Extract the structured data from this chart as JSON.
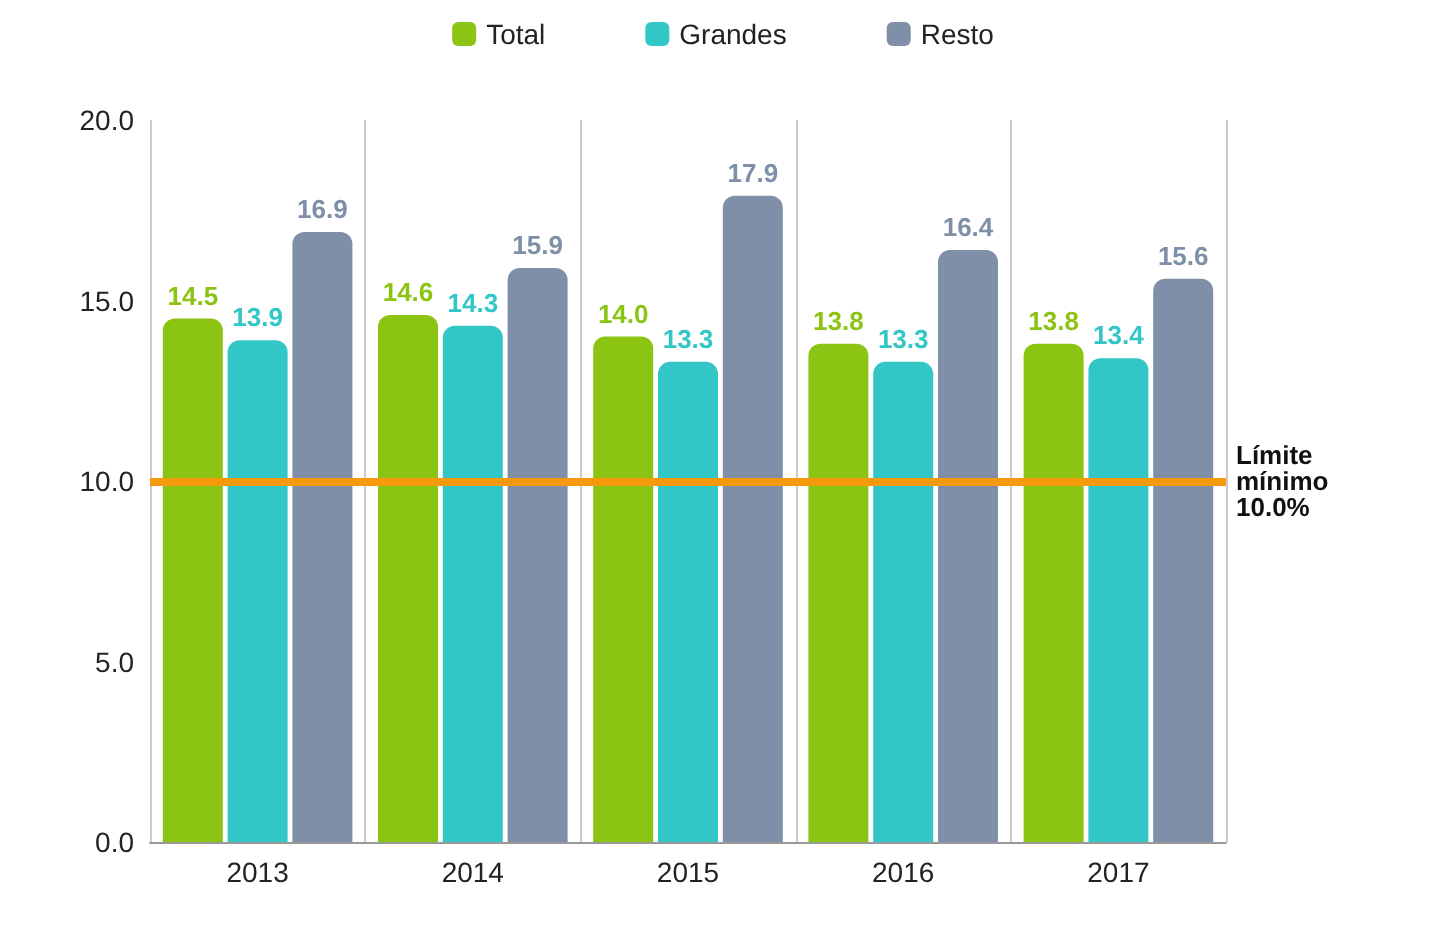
{
  "chart_data": {
    "type": "bar",
    "categories": [
      "2013",
      "2014",
      "2015",
      "2016",
      "2017"
    ],
    "series": [
      {
        "name": "Total",
        "color": "#8cc414",
        "values": [
          14.5,
          14.6,
          14.0,
          13.8,
          13.8
        ],
        "value_labels": [
          "14.5",
          "14.6",
          "14.0",
          "13.8",
          "13.8"
        ]
      },
      {
        "name": "Grandes",
        "color": "#33c6c6",
        "values": [
          13.9,
          14.3,
          13.3,
          13.3,
          13.4
        ],
        "value_labels": [
          "13.9",
          "14.3",
          "13.3",
          "13.3",
          "13.4"
        ]
      },
      {
        "name": "Resto",
        "color": "#7f8fa8",
        "values": [
          16.9,
          15.9,
          17.9,
          16.4,
          15.6
        ],
        "value_labels": [
          "16.9",
          "15.9",
          "17.9",
          "16.4",
          "15.6"
        ]
      }
    ],
    "ylim": [
      0,
      20
    ],
    "yticks": [
      {
        "value": 0,
        "label": "0.0"
      },
      {
        "value": 5,
        "label": "5.0"
      },
      {
        "value": 10,
        "label": "10.0"
      },
      {
        "value": 15,
        "label": "15.0"
      },
      {
        "value": 20,
        "label": "20.0"
      }
    ],
    "ref_lines": [
      {
        "axis": "y",
        "value": 10,
        "label": "Límite mínimo 10.0%",
        "color": "#f59a0c"
      }
    ],
    "grid": "x",
    "legend": "top"
  }
}
